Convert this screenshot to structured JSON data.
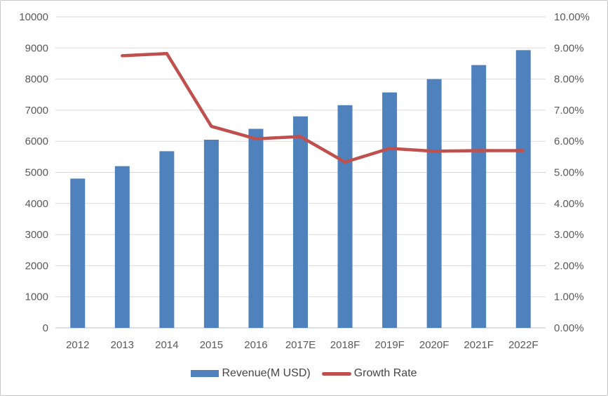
{
  "chart_data": {
    "type": "combo-bar-line",
    "title": "",
    "categories": [
      "2012",
      "2013",
      "2014",
      "2015",
      "2016",
      "2017E",
      "2018F",
      "2019F",
      "2020F",
      "2021F",
      "2022F"
    ],
    "series": [
      {
        "name": "Revenue(M USD)",
        "type": "bar",
        "axis": "left",
        "color": "#4F81BD",
        "values": [
          4800,
          5200,
          5680,
          6050,
          6400,
          6800,
          7160,
          7570,
          8000,
          8450,
          8930
        ]
      },
      {
        "name": "Growth Rate",
        "type": "line",
        "axis": "right",
        "color": "#C0504D",
        "values": [
          null,
          8.75,
          8.82,
          6.48,
          6.08,
          6.15,
          5.33,
          5.77,
          5.68,
          5.7,
          5.7
        ]
      }
    ],
    "left_axis": {
      "min": 0,
      "max": 10000,
      "step": 1000,
      "tick_labels": [
        "0",
        "1000",
        "2000",
        "3000",
        "4000",
        "5000",
        "6000",
        "7000",
        "8000",
        "9000",
        "10000"
      ]
    },
    "right_axis": {
      "min": 0,
      "max": 10,
      "step": 1,
      "tick_labels": [
        "0.00%",
        "1.00%",
        "2.00%",
        "3.00%",
        "4.00%",
        "5.00%",
        "6.00%",
        "7.00%",
        "8.00%",
        "9.00%",
        "10.00%"
      ]
    },
    "grid": true,
    "legend_position": "bottom",
    "colors": {
      "gridline": "#D9D9D9",
      "axis_line": "#BFBFBF",
      "tick_text": "#595959",
      "background": "#FFFFFF",
      "border": "#C9C9C9"
    }
  }
}
